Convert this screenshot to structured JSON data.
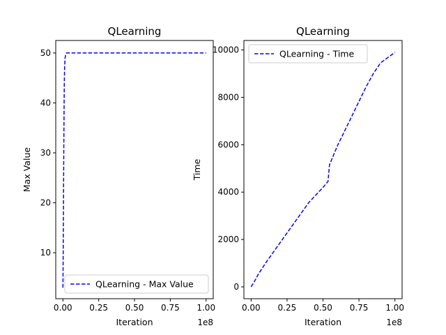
{
  "chart_data": [
    {
      "type": "line",
      "title": "QLearning",
      "xlabel": "Iteration",
      "ylabel": "Max Value",
      "x_offset_text": "1e8",
      "xlim": [
        -0.05,
        1.05
      ],
      "ylim": [
        0.8,
        52.5
      ],
      "xticks": [
        0.0,
        0.25,
        0.5,
        0.75,
        1.0
      ],
      "xtick_labels": [
        "0.00",
        "0.25",
        "0.50",
        "0.75",
        "1.00"
      ],
      "yticks": [
        10,
        20,
        30,
        40,
        50
      ],
      "yticklabels": [
        "10",
        "20",
        "30",
        "40",
        "50"
      ],
      "grid": false,
      "legend_position": "lower-right",
      "series": [
        {
          "name": "QLearning - Max Value",
          "color": "#0000ff",
          "style": "dashed",
          "x": [
            0.0,
            0.002,
            0.004,
            0.006,
            0.008,
            0.01,
            0.012,
            0.015,
            0.02,
            0.025,
            0.05,
            0.1,
            0.25,
            0.5,
            0.75,
            1.0
          ],
          "y": [
            3,
            10,
            20,
            30,
            38,
            44,
            47,
            49,
            49.7,
            50,
            50,
            50,
            50,
            50,
            50,
            50
          ]
        }
      ]
    },
    {
      "type": "line",
      "title": "QLearning",
      "xlabel": "Iteration",
      "ylabel": "Time",
      "x_offset_text": "1e8",
      "xlim": [
        -0.05,
        1.05
      ],
      "ylim": [
        -500,
        10400
      ],
      "xticks": [
        0.0,
        0.25,
        0.5,
        0.75,
        1.0
      ],
      "xtick_labels": [
        "0.00",
        "0.25",
        "0.50",
        "0.75",
        "1.00"
      ],
      "yticks": [
        0,
        2000,
        4000,
        6000,
        8000,
        10000
      ],
      "yticklabels": [
        "0",
        "2000",
        "4000",
        "6000",
        "8000",
        "10000"
      ],
      "grid": false,
      "legend_position": "upper-left",
      "series": [
        {
          "name": "QLearning - Time",
          "color": "#0000ff",
          "style": "dashed",
          "x": [
            0.0,
            0.03,
            0.05,
            0.1,
            0.2,
            0.3,
            0.4,
            0.5,
            0.535,
            0.545,
            0.6,
            0.7,
            0.8,
            0.85,
            0.9,
            1.0
          ],
          "y": [
            0,
            300,
            530,
            1000,
            1850,
            2700,
            3550,
            4200,
            4450,
            5150,
            5950,
            7200,
            8450,
            9000,
            9450,
            9900
          ]
        }
      ]
    }
  ]
}
